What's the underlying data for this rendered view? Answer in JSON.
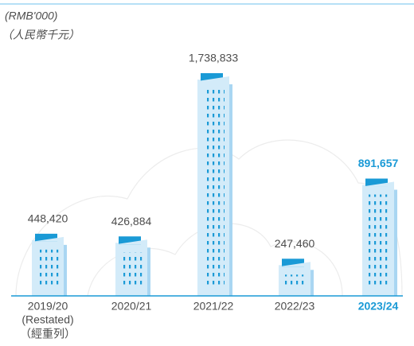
{
  "chart_data": {
    "type": "bar",
    "annotations": [
      "(RMB'000)",
      "（人民幣千元）"
    ],
    "categories": [
      "2019/20",
      "2020/21",
      "2021/22",
      "2022/23",
      "2023/24"
    ],
    "category_notes": [
      "(Restated)",
      "（經重列）"
    ],
    "values": [
      448420,
      426884,
      1738833,
      247460,
      891657
    ],
    "value_labels": [
      "448,420",
      "426,884",
      "1,738,833",
      "247,460",
      "891,657"
    ],
    "color": "#d3ebf9",
    "roof_color": "#1a9ad6",
    "shade_color": "#a9d6f2"
  }
}
